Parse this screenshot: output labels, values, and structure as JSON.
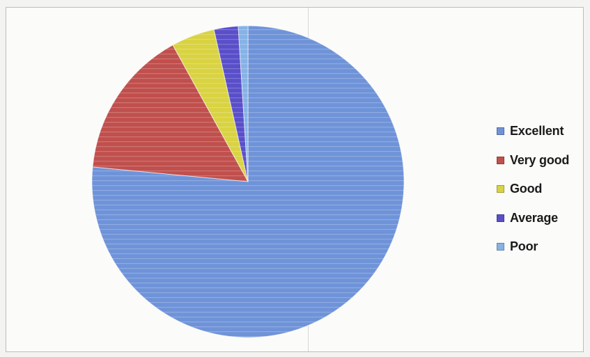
{
  "chart_data": {
    "type": "pie",
    "categories": [
      "Excellent",
      "Very good",
      "Good",
      "Average",
      "Poor"
    ],
    "values": [
      76.5,
      15.5,
      4.5,
      2.5,
      1.0
    ],
    "colors": [
      "#6f93d8",
      "#c0504d",
      "#d9d342",
      "#5a4fc9",
      "#86b3e6"
    ],
    "legend_position": "right",
    "title": ""
  }
}
